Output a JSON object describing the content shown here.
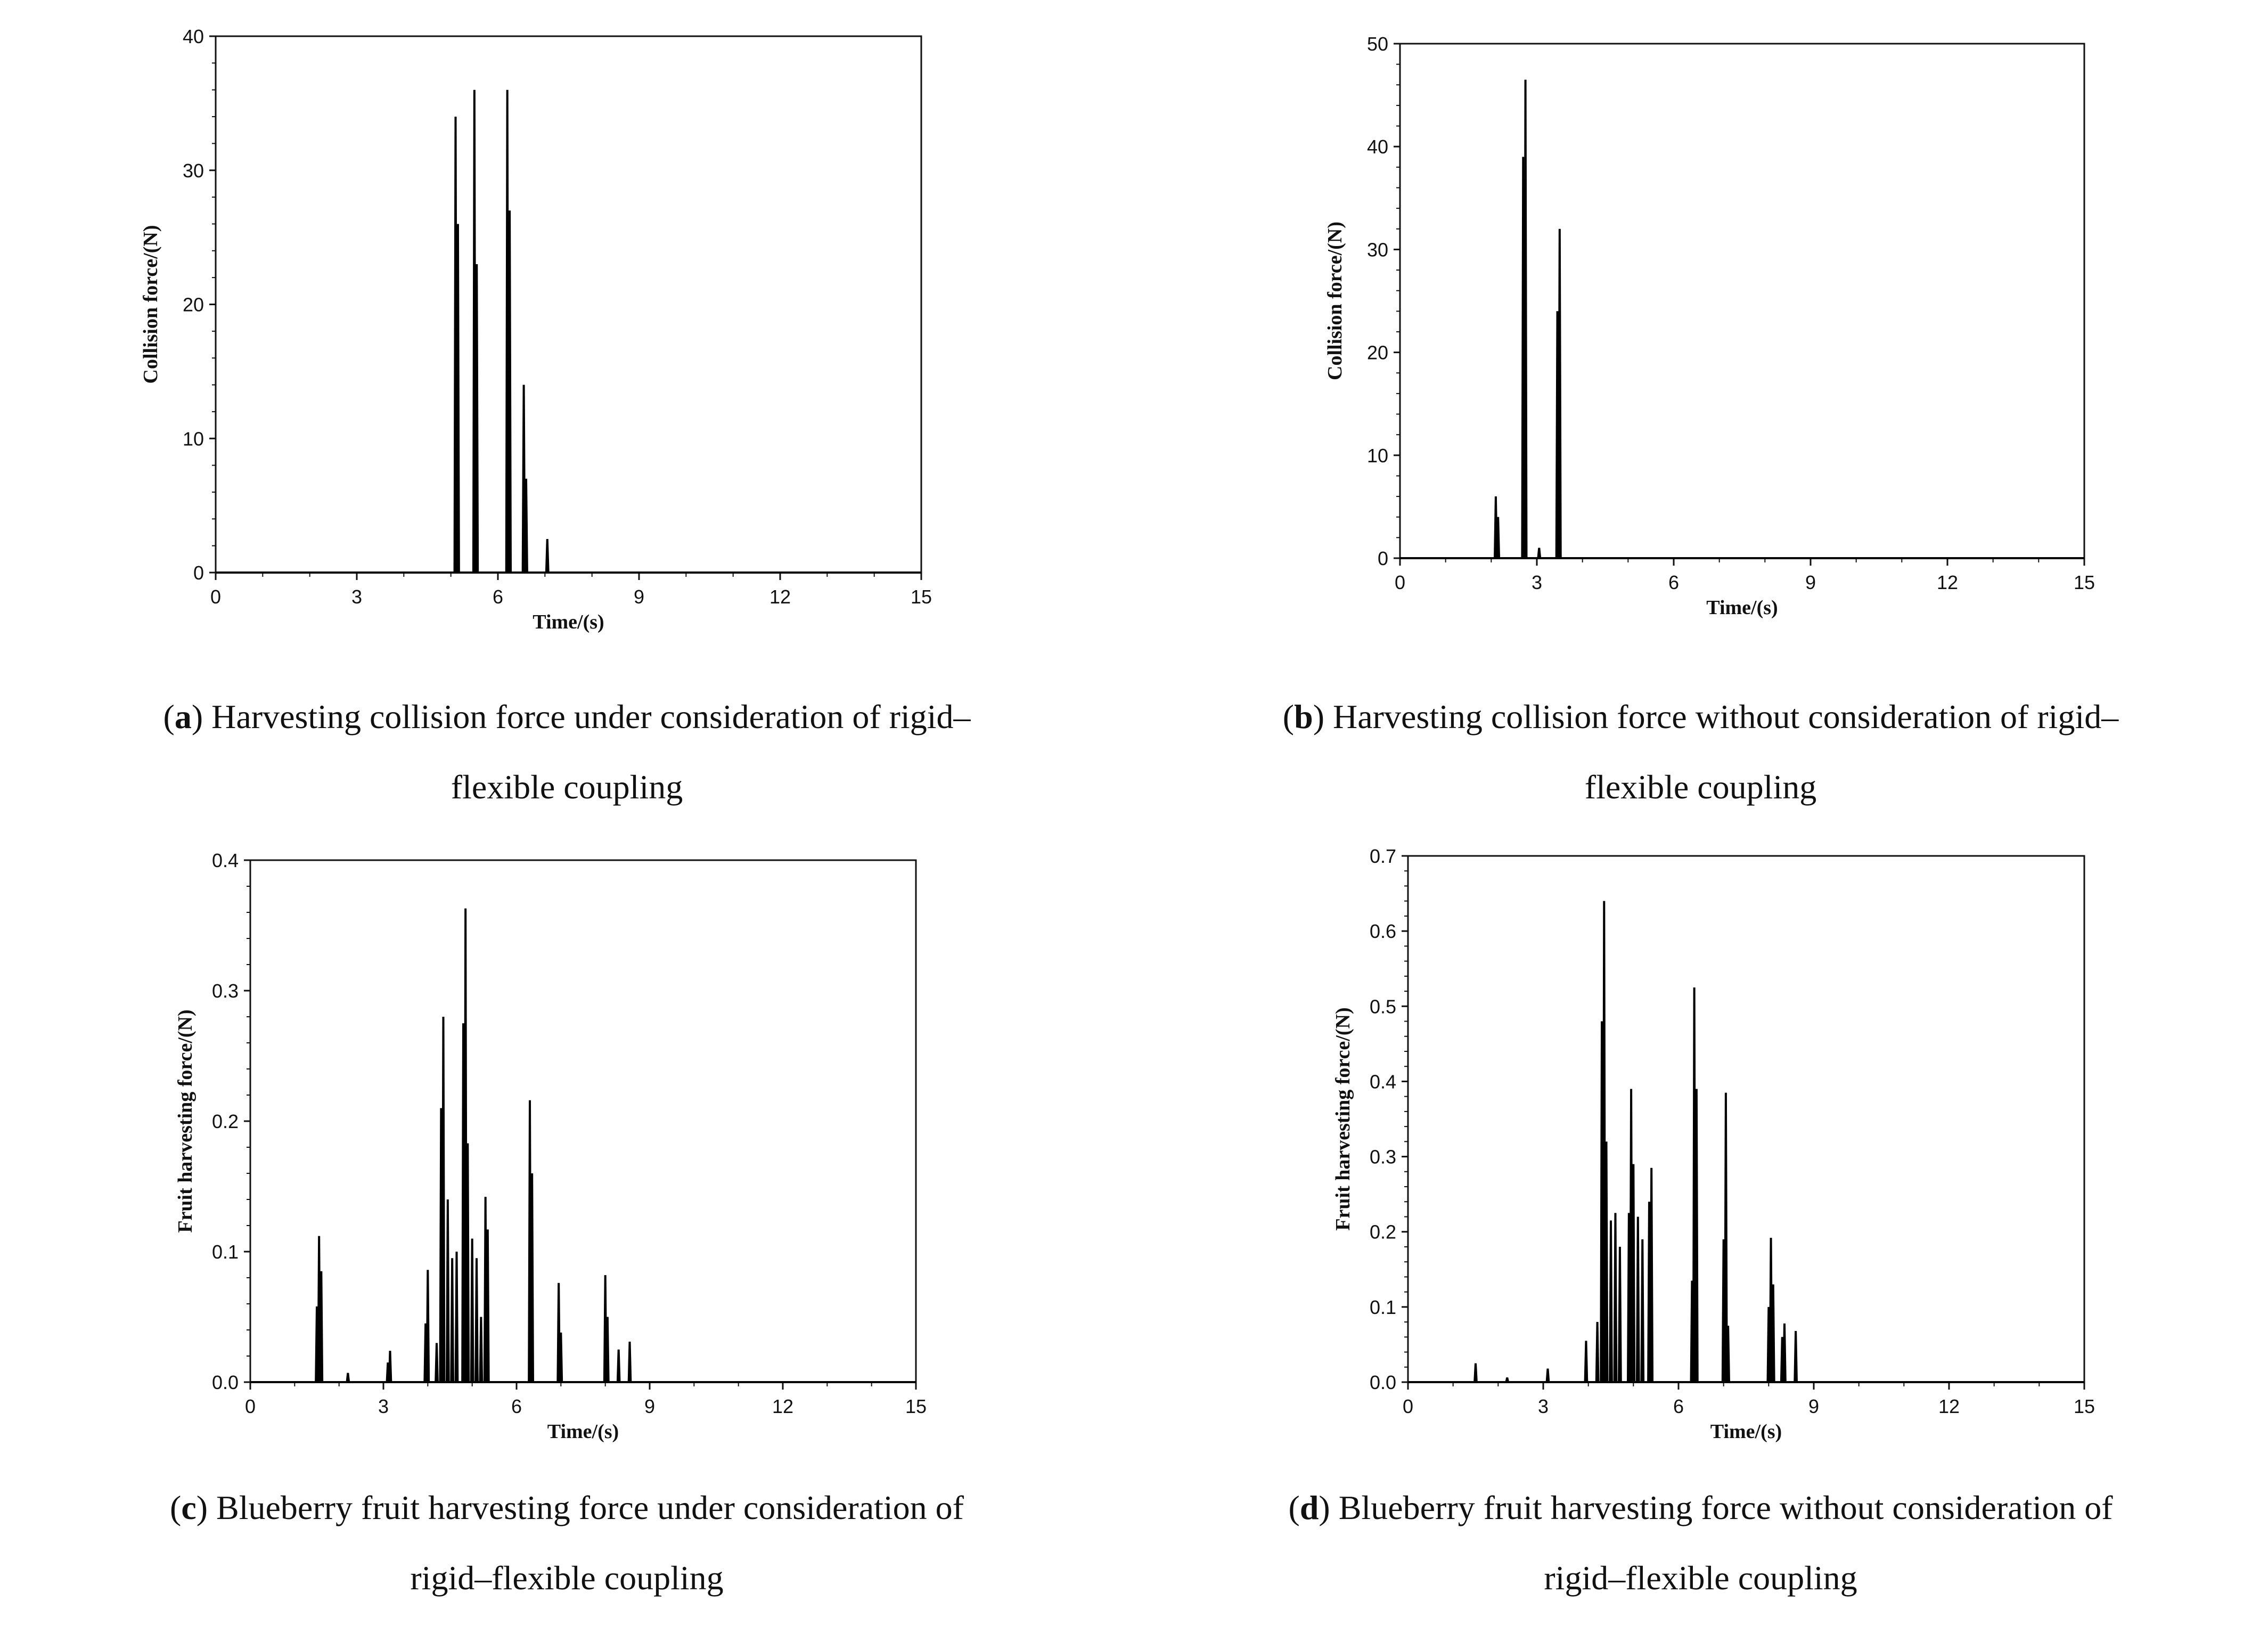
{
  "captions": [
    {
      "letter": "a",
      "text": "Harvesting collision force under consideration of rigid–",
      "text2": "flexible coupling"
    },
    {
      "letter": "b",
      "text": "Harvesting collision force without consideration of rigid–",
      "text2": "flexible coupling"
    },
    {
      "letter": "c",
      "text": "Blueberry fruit harvesting force under consideration of",
      "text2": "rigid–flexible coupling"
    },
    {
      "letter": "d",
      "text": "Blueberry fruit harvesting force without consideration of",
      "text2": "rigid–flexible coupling"
    }
  ],
  "chart_data": [
    {
      "type": "line",
      "xlabel": "Time/(s)",
      "ylabel": "Collision force/(N)",
      "xlim": [
        0,
        15
      ],
      "ylim": [
        0,
        40
      ],
      "xticks": [
        0,
        3,
        6,
        9,
        12,
        15
      ],
      "yticks": [
        0,
        10,
        20,
        30,
        40
      ],
      "line_color": "#000000",
      "peaks": [
        {
          "t": 5.1,
          "f": 34
        },
        {
          "t": 5.15,
          "f": 26
        },
        {
          "t": 5.5,
          "f": 36
        },
        {
          "t": 5.55,
          "f": 23
        },
        {
          "t": 6.2,
          "f": 36
        },
        {
          "t": 6.25,
          "f": 27
        },
        {
          "t": 6.55,
          "f": 14
        },
        {
          "t": 6.6,
          "f": 7
        },
        {
          "t": 7.05,
          "f": 2.5
        }
      ]
    },
    {
      "type": "line",
      "xlabel": "Time/(s)",
      "ylabel": "Collision force/(N)",
      "xlim": [
        0,
        15
      ],
      "ylim": [
        0,
        50
      ],
      "xticks": [
        0,
        3,
        6,
        9,
        12,
        15
      ],
      "yticks": [
        0,
        10,
        20,
        30,
        40,
        50
      ],
      "line_color": "#000000",
      "peaks": [
        {
          "t": 2.1,
          "f": 6
        },
        {
          "t": 2.15,
          "f": 4
        },
        {
          "t": 2.7,
          "f": 39
        },
        {
          "t": 2.75,
          "f": 46.5
        },
        {
          "t": 3.05,
          "f": 1
        },
        {
          "t": 3.45,
          "f": 24
        },
        {
          "t": 3.5,
          "f": 32
        }
      ]
    },
    {
      "type": "line",
      "xlabel": "Time/(s)",
      "ylabel": "Fruit harvesting force/(N)",
      "xlim": [
        0,
        15
      ],
      "ylim": [
        0,
        0.4
      ],
      "xticks": [
        0,
        3,
        6,
        9,
        12,
        15
      ],
      "yticks": [
        0.0,
        0.1,
        0.2,
        0.3,
        0.4
      ],
      "line_color": "#000000",
      "peaks": [
        {
          "t": 1.5,
          "f": 0.058
        },
        {
          "t": 1.55,
          "f": 0.112
        },
        {
          "t": 1.6,
          "f": 0.085
        },
        {
          "t": 2.2,
          "f": 0.007
        },
        {
          "t": 3.1,
          "f": 0.015
        },
        {
          "t": 3.15,
          "f": 0.024
        },
        {
          "t": 3.95,
          "f": 0.045
        },
        {
          "t": 4.0,
          "f": 0.086
        },
        {
          "t": 4.2,
          "f": 0.03
        },
        {
          "t": 4.3,
          "f": 0.21
        },
        {
          "t": 4.35,
          "f": 0.28
        },
        {
          "t": 4.45,
          "f": 0.14
        },
        {
          "t": 4.55,
          "f": 0.095
        },
        {
          "t": 4.65,
          "f": 0.1
        },
        {
          "t": 4.8,
          "f": 0.275
        },
        {
          "t": 4.85,
          "f": 0.363
        },
        {
          "t": 4.9,
          "f": 0.183
        },
        {
          "t": 5.0,
          "f": 0.11
        },
        {
          "t": 5.1,
          "f": 0.095
        },
        {
          "t": 5.2,
          "f": 0.05
        },
        {
          "t": 5.3,
          "f": 0.142
        },
        {
          "t": 5.35,
          "f": 0.117
        },
        {
          "t": 6.3,
          "f": 0.216
        },
        {
          "t": 6.35,
          "f": 0.16
        },
        {
          "t": 6.95,
          "f": 0.076
        },
        {
          "t": 7.0,
          "f": 0.038
        },
        {
          "t": 8.0,
          "f": 0.082
        },
        {
          "t": 8.05,
          "f": 0.05
        },
        {
          "t": 8.3,
          "f": 0.025
        },
        {
          "t": 8.55,
          "f": 0.031
        }
      ]
    },
    {
      "type": "line",
      "xlabel": "Time/(s)",
      "ylabel": "Fruit harvesting force/(N)",
      "xlim": [
        0,
        15
      ],
      "ylim": [
        0,
        0.7
      ],
      "xticks": [
        0,
        3,
        6,
        9,
        12,
        15
      ],
      "yticks": [
        0.0,
        0.1,
        0.2,
        0.3,
        0.4,
        0.5,
        0.6,
        0.7
      ],
      "line_color": "#000000",
      "peaks": [
        {
          "t": 1.5,
          "f": 0.025
        },
        {
          "t": 2.2,
          "f": 0.006
        },
        {
          "t": 3.1,
          "f": 0.018
        },
        {
          "t": 3.95,
          "f": 0.055
        },
        {
          "t": 4.2,
          "f": 0.08
        },
        {
          "t": 4.3,
          "f": 0.48
        },
        {
          "t": 4.35,
          "f": 0.64
        },
        {
          "t": 4.4,
          "f": 0.32
        },
        {
          "t": 4.5,
          "f": 0.215
        },
        {
          "t": 4.6,
          "f": 0.225
        },
        {
          "t": 4.7,
          "f": 0.18
        },
        {
          "t": 4.9,
          "f": 0.225
        },
        {
          "t": 4.95,
          "f": 0.39
        },
        {
          "t": 5.0,
          "f": 0.29
        },
        {
          "t": 5.1,
          "f": 0.22
        },
        {
          "t": 5.2,
          "f": 0.19
        },
        {
          "t": 5.35,
          "f": 0.24
        },
        {
          "t": 5.4,
          "f": 0.285
        },
        {
          "t": 6.3,
          "f": 0.135
        },
        {
          "t": 6.35,
          "f": 0.525
        },
        {
          "t": 6.4,
          "f": 0.39
        },
        {
          "t": 7.0,
          "f": 0.19
        },
        {
          "t": 7.05,
          "f": 0.385
        },
        {
          "t": 7.1,
          "f": 0.075
        },
        {
          "t": 8.0,
          "f": 0.1
        },
        {
          "t": 8.05,
          "f": 0.192
        },
        {
          "t": 8.1,
          "f": 0.13
        },
        {
          "t": 8.3,
          "f": 0.06
        },
        {
          "t": 8.35,
          "f": 0.078
        },
        {
          "t": 8.6,
          "f": 0.068
        }
      ]
    }
  ]
}
